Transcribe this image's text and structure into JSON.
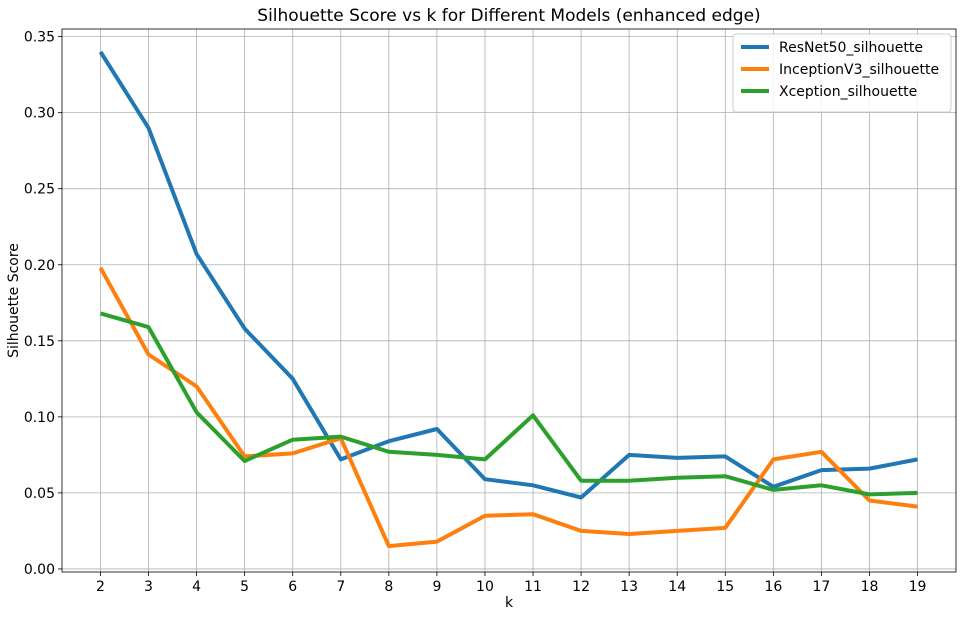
{
  "chart_data": {
    "type": "line",
    "title": "Silhouette Score vs k for Different Models (enhanced edge)",
    "xlabel": "k",
    "ylabel": "Silhouette Score",
    "x": [
      2,
      3,
      4,
      5,
      6,
      7,
      8,
      9,
      10,
      11,
      12,
      13,
      14,
      15,
      16,
      17,
      18,
      19
    ],
    "xlim": [
      1.2,
      19.8
    ],
    "ylim": [
      -0.002,
      0.355
    ],
    "xticks": [
      "2",
      "3",
      "4",
      "5",
      "6",
      "7",
      "8",
      "9",
      "10",
      "11",
      "12",
      "13",
      "14",
      "15",
      "16",
      "17",
      "18",
      "19"
    ],
    "yticks": [
      0.0,
      0.05,
      0.1,
      0.15,
      0.2,
      0.25,
      0.3,
      0.35
    ],
    "ytick_labels": [
      "0.00",
      "0.05",
      "0.10",
      "0.15",
      "0.20",
      "0.25",
      "0.30",
      "0.35"
    ],
    "grid": true,
    "legend_position": "top-right",
    "series": [
      {
        "name": "ResNet50_silhouette",
        "color": "#1f77b4",
        "values": [
          0.34,
          0.29,
          0.207,
          0.158,
          0.125,
          0.072,
          0.084,
          0.092,
          0.059,
          0.055,
          0.047,
          0.075,
          0.073,
          0.074,
          0.054,
          0.065,
          0.066,
          0.072
        ]
      },
      {
        "name": "InceptionV3_silhouette",
        "color": "#ff7f0e",
        "values": [
          0.198,
          0.141,
          0.12,
          0.074,
          0.076,
          0.086,
          0.015,
          0.018,
          0.035,
          0.036,
          0.025,
          0.023,
          0.025,
          0.027,
          0.072,
          0.077,
          0.045,
          0.041
        ]
      },
      {
        "name": "Xception_silhouette",
        "color": "#2ca02c",
        "values": [
          0.168,
          0.159,
          0.103,
          0.071,
          0.085,
          0.087,
          0.077,
          0.075,
          0.072,
          0.101,
          0.058,
          0.058,
          0.06,
          0.061,
          0.052,
          0.055,
          0.049,
          0.05
        ]
      }
    ]
  }
}
